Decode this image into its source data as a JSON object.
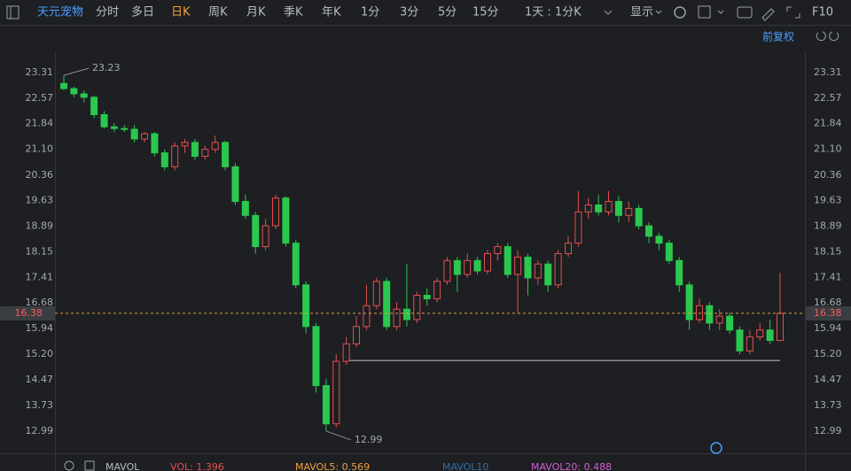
{
  "toolbar": {
    "stock": "天元宠物",
    "tabs": [
      "分时",
      "多日",
      "日K",
      "周K",
      "月K",
      "季K",
      "年K",
      "1分",
      "3分",
      "5分",
      "15分"
    ],
    "period": "1天 : 1分K",
    "display": "显示",
    "f10": "F10"
  },
  "adjust": "前复权",
  "chart_data": {
    "type": "candlestick",
    "open": [
      23.0,
      22.85,
      22.7,
      22.6,
      22.1,
      21.75,
      21.7,
      21.68,
      21.4,
      21.55,
      21.0,
      20.6,
      21.2,
      21.3,
      20.9,
      21.1,
      21.3,
      20.6,
      19.6,
      19.2,
      18.3,
      18.9,
      19.7,
      18.4,
      17.2,
      16.0,
      14.3,
      13.2,
      15.0,
      15.5,
      16.0,
      16.6,
      17.3,
      16.0,
      16.5,
      16.2,
      16.9,
      16.8,
      17.3,
      17.9,
      17.5,
      17.9,
      17.6,
      18.1,
      18.3,
      17.5,
      18.0,
      17.4,
      17.8,
      17.2,
      18.1,
      18.4,
      19.3,
      19.5,
      19.3,
      19.6,
      19.2,
      19.4,
      18.9,
      18.6,
      18.4,
      17.9,
      17.2,
      16.2,
      16.6,
      16.1,
      16.3,
      15.9,
      15.3,
      15.7,
      15.9,
      15.6
    ],
    "high": [
      23.23,
      22.9,
      22.8,
      22.65,
      22.2,
      21.85,
      21.8,
      21.8,
      21.6,
      21.6,
      21.1,
      21.3,
      21.4,
      21.4,
      21.2,
      21.5,
      21.35,
      20.7,
      19.8,
      19.3,
      19.1,
      19.8,
      19.75,
      18.5,
      17.3,
      16.1,
      14.5,
      15.2,
      15.7,
      16.3,
      17.2,
      17.4,
      17.4,
      16.7,
      17.8,
      17.0,
      17.1,
      17.4,
      18.0,
      18.0,
      18.1,
      18.0,
      18.2,
      18.4,
      18.4,
      18.2,
      18.1,
      17.9,
      17.9,
      18.2,
      18.6,
      19.9,
      19.7,
      19.8,
      19.9,
      19.75,
      19.6,
      19.5,
      19.0,
      18.7,
      18.5,
      18.0,
      17.3,
      16.8,
      16.7,
      16.5,
      16.4,
      16.0,
      15.9,
      16.1,
      16.2,
      17.55
    ],
    "low": [
      22.8,
      22.6,
      22.45,
      22.0,
      21.7,
      21.6,
      21.6,
      21.3,
      21.3,
      20.9,
      20.5,
      20.5,
      21.0,
      20.8,
      20.8,
      21.0,
      20.5,
      19.5,
      19.1,
      18.1,
      18.2,
      18.8,
      18.3,
      17.1,
      15.8,
      14.1,
      12.99,
      13.1,
      14.9,
      15.4,
      15.9,
      16.5,
      15.9,
      15.9,
      16.0,
      16.1,
      16.6,
      16.7,
      17.2,
      17.0,
      17.4,
      17.5,
      17.5,
      17.9,
      17.4,
      16.4,
      16.9,
      17.2,
      17.0,
      17.1,
      18.0,
      18.3,
      19.1,
      19.2,
      19.2,
      19.0,
      19.0,
      18.8,
      18.4,
      18.2,
      17.8,
      17.0,
      15.9,
      16.1,
      15.9,
      15.9,
      15.8,
      15.2,
      15.2,
      15.6,
      15.5,
      15.6
    ],
    "close": [
      22.85,
      22.7,
      22.6,
      22.1,
      21.75,
      21.7,
      21.68,
      21.4,
      21.55,
      21.0,
      20.6,
      21.2,
      21.3,
      20.9,
      21.1,
      21.3,
      20.6,
      19.6,
      19.2,
      18.3,
      18.9,
      19.7,
      18.4,
      17.2,
      16.0,
      14.3,
      13.2,
      15.0,
      15.5,
      16.0,
      16.6,
      17.3,
      16.0,
      16.5,
      16.2,
      16.9,
      16.8,
      17.3,
      17.9,
      17.5,
      17.9,
      17.6,
      18.1,
      18.3,
      17.5,
      18.0,
      17.4,
      17.8,
      17.2,
      18.1,
      18.4,
      19.3,
      19.5,
      19.3,
      19.6,
      19.2,
      19.4,
      18.9,
      18.6,
      18.4,
      17.9,
      17.2,
      16.2,
      16.6,
      16.1,
      16.3,
      15.9,
      15.3,
      15.7,
      15.9,
      15.6,
      16.38
    ],
    "up_color": "#e84e4e",
    "down_color": "#2bc84f",
    "ylim": [
      12.53,
      23.82
    ],
    "yticks": [
      23.31,
      22.57,
      21.84,
      {
        "value": 21.1,
        "label": "21.10"
      },
      20.36,
      19.63,
      18.89,
      18.15,
      17.41,
      16.68,
      15.94,
      {
        "value": 15.2,
        "label": "15.20"
      },
      14.47,
      13.73,
      12.99
    ],
    "last_price": 16.38,
    "high_marker": 23.23,
    "low_marker": 12.99,
    "support_line": 15.02
  },
  "indicator_bar": [
    {
      "text": "MAVOL",
      "color": "#b8bcc4"
    },
    {
      "text": "VOL: 1.396",
      "color": "#e84e4e"
    },
    {
      "text": "MAVOL5: 0.569",
      "color": "#f0a040"
    },
    {
      "text": "MAVOL10",
      "color": "#2f6fa8"
    },
    {
      "text": "MAVOL20: 0.488",
      "color": "#d65fd6"
    }
  ]
}
